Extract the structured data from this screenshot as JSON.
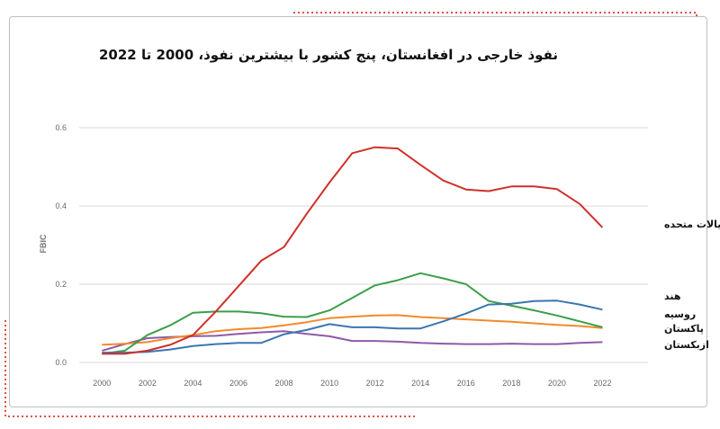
{
  "colors": {
    "united_states": "#d0302b",
    "india": "#3c9e49",
    "russia": "#f28a2a",
    "pakistan": "#3b76b1",
    "uzbekistan": "#8e5aa8",
    "frame_dots": "#e05045"
  },
  "chart_data": {
    "type": "line",
    "title": "نفوذ خارجی در افغانستان، پنج کشور با بیشترین نفوذ، 2000 تا 2022",
    "xlabel": "",
    "ylabel": "FBIC",
    "xlim": [
      1999,
      2024
    ],
    "ylim": [
      0,
      0.6
    ],
    "x_ticks": [
      "2000",
      "2002",
      "2004",
      "2006",
      "2008",
      "2010",
      "2012",
      "2014",
      "2016",
      "2018",
      "2020",
      "2022"
    ],
    "y_ticks": [
      "0.0",
      "0.2",
      "0.4",
      "0.6"
    ],
    "grid": "horizontal",
    "x": [
      2000,
      2001,
      2002,
      2003,
      2004,
      2005,
      2006,
      2007,
      2008,
      2009,
      2010,
      2011,
      2012,
      2013,
      2014,
      2015,
      2016,
      2017,
      2018,
      2019,
      2020,
      2021,
      2022
    ],
    "series": [
      {
        "key": "united_states",
        "name": "ایالات متحده",
        "values": [
          0.022,
          0.022,
          0.03,
          0.045,
          0.07,
          0.13,
          0.195,
          0.26,
          0.295,
          0.38,
          0.46,
          0.535,
          0.55,
          0.547,
          0.505,
          0.465,
          0.442,
          0.438,
          0.45,
          0.45,
          0.443,
          0.405,
          0.345
        ]
      },
      {
        "key": "india",
        "name": "هند",
        "values": [
          0.022,
          0.03,
          0.07,
          0.095,
          0.127,
          0.13,
          0.13,
          0.126,
          0.117,
          0.116,
          0.133,
          0.165,
          0.197,
          0.21,
          0.228,
          0.215,
          0.2,
          0.157,
          0.145,
          0.133,
          0.12,
          0.105,
          0.09
        ]
      },
      {
        "key": "russia",
        "name": "روسیه",
        "values": [
          0.045,
          0.048,
          0.052,
          0.062,
          0.07,
          0.08,
          0.085,
          0.088,
          0.095,
          0.103,
          0.113,
          0.117,
          0.12,
          0.121,
          0.116,
          0.113,
          0.11,
          0.107,
          0.104,
          0.1,
          0.096,
          0.093,
          0.088
        ]
      },
      {
        "key": "pakistan",
        "name": "پاکستان",
        "values": [
          0.025,
          0.025,
          0.027,
          0.033,
          0.042,
          0.047,
          0.05,
          0.05,
          0.072,
          0.083,
          0.098,
          0.09,
          0.09,
          0.087,
          0.087,
          0.105,
          0.125,
          0.148,
          0.15,
          0.157,
          0.158,
          0.148,
          0.135
        ]
      },
      {
        "key": "uzbekistan",
        "name": "ازبکستان",
        "values": [
          0.03,
          0.047,
          0.062,
          0.065,
          0.067,
          0.068,
          0.073,
          0.077,
          0.08,
          0.073,
          0.067,
          0.055,
          0.055,
          0.053,
          0.05,
          0.048,
          0.047,
          0.047,
          0.048,
          0.047,
          0.047,
          0.05,
          0.052
        ]
      }
    ],
    "label_order": [
      "united_states",
      "india",
      "russia",
      "pakistan",
      "uzbekistan"
    ]
  }
}
